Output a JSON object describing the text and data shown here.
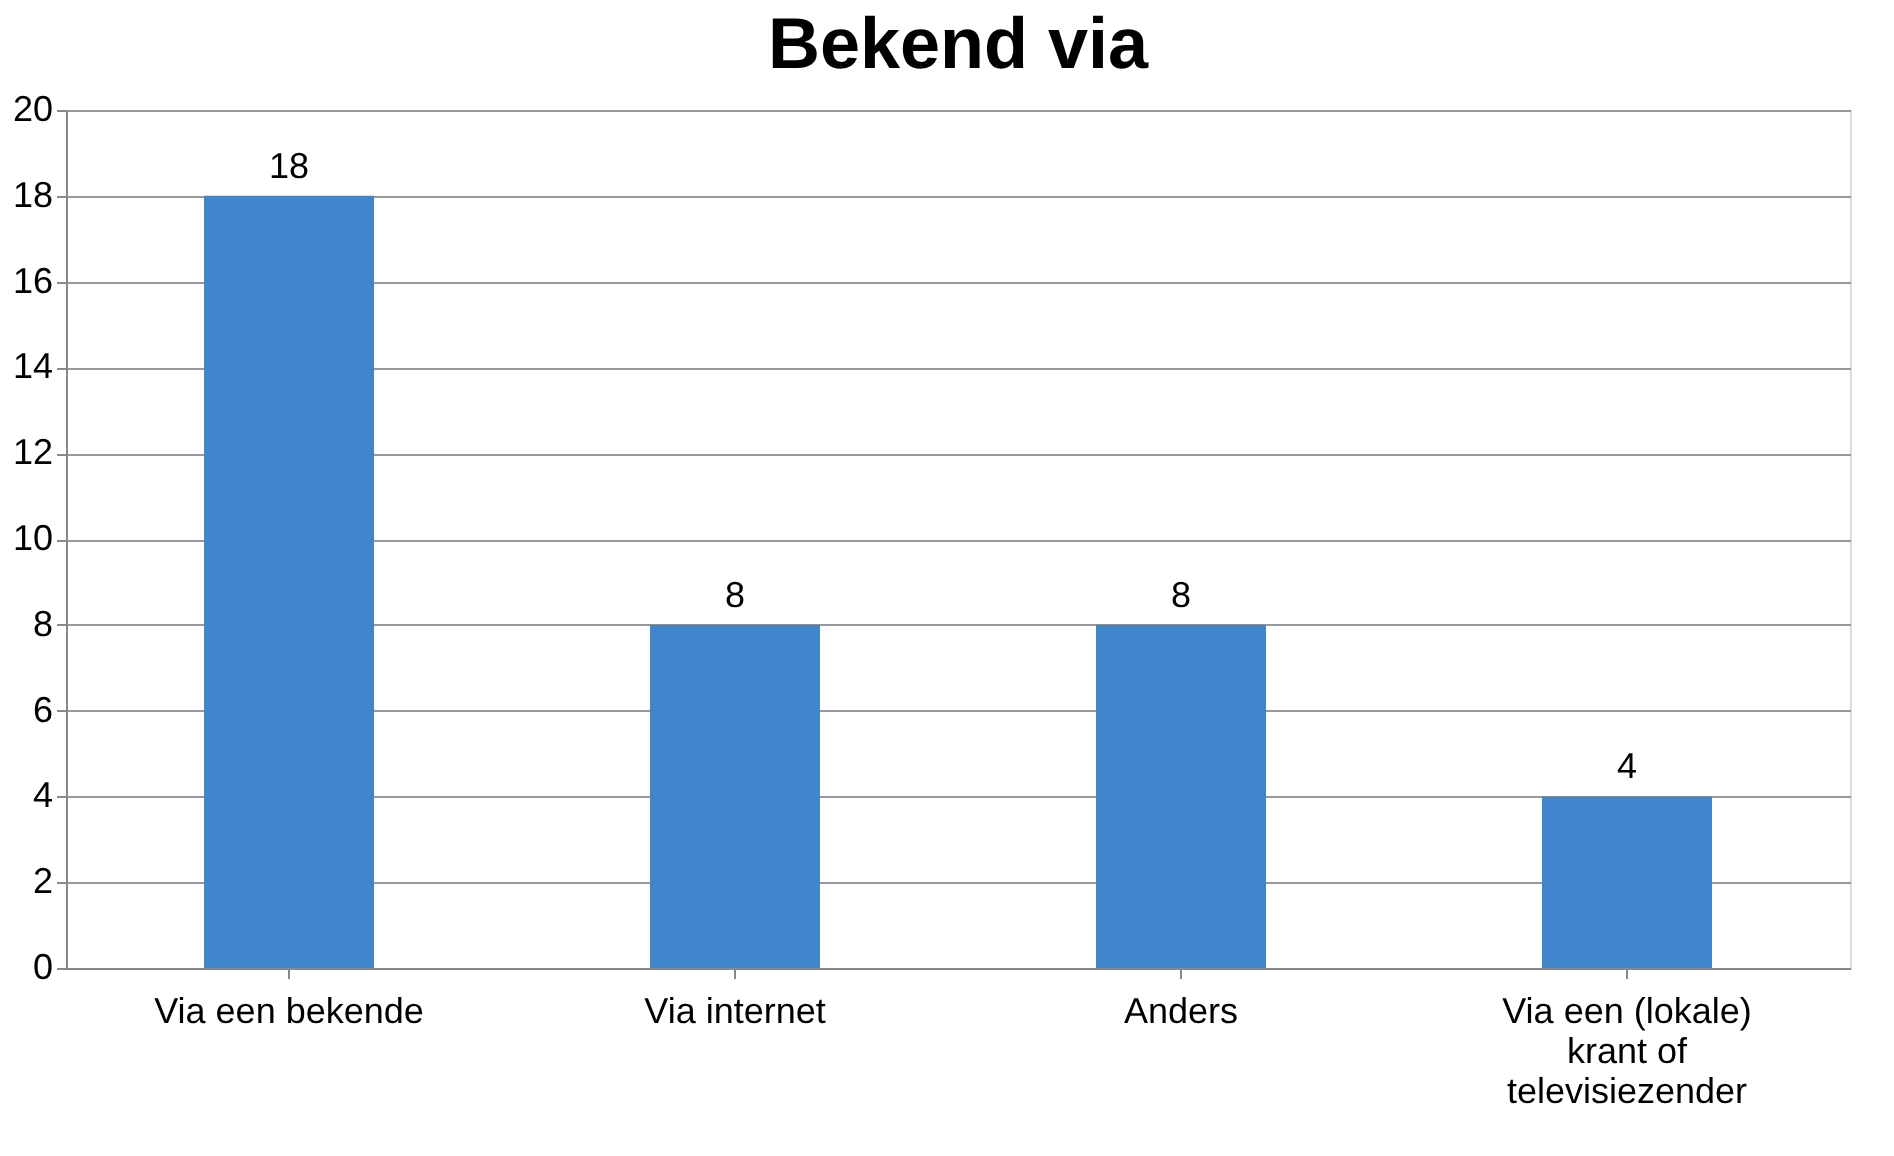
{
  "chart_data": {
    "type": "bar",
    "title": "Bekend via",
    "categories": [
      "Via een bekende",
      "Via internet",
      "Anders",
      "Via een (lokale) krant of televisiezender"
    ],
    "values": [
      18,
      8,
      8,
      4
    ],
    "color": "#3f86cc",
    "ylim": [
      0,
      20
    ],
    "yticks": [
      0,
      2,
      4,
      6,
      8,
      10,
      12,
      14,
      16,
      18,
      20
    ],
    "grid": "y",
    "data_labels": true
  }
}
